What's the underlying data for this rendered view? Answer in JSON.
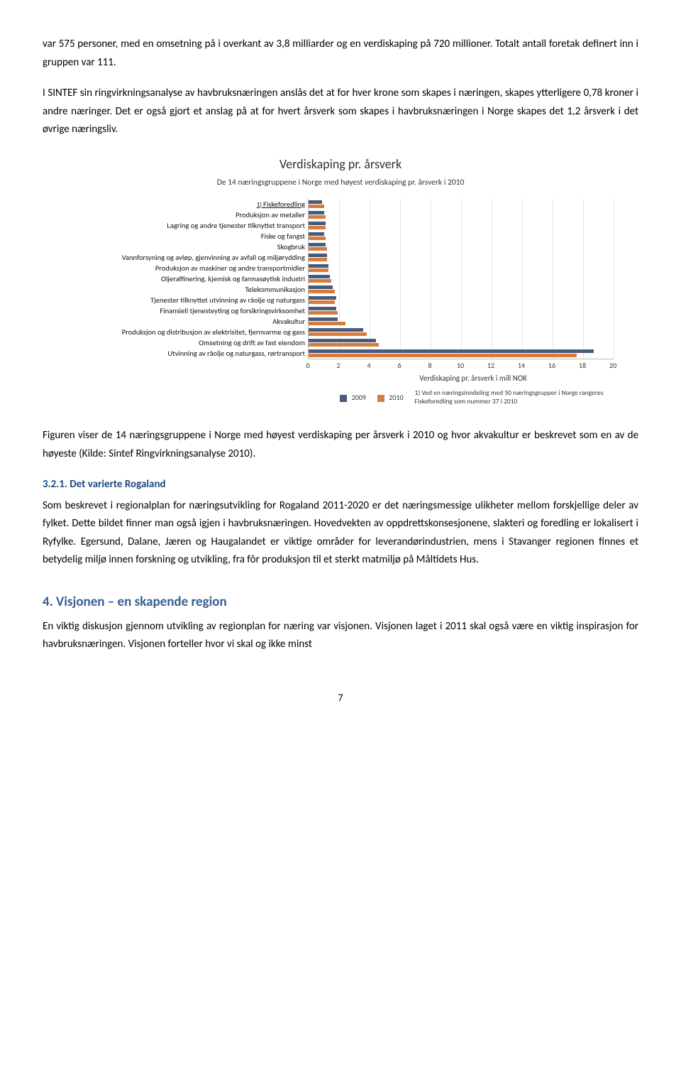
{
  "paragraphs": {
    "p1": "var 575 personer, med en omsetning på i overkant av 3,8 milliarder og en verdiskaping på 720 millioner. Totalt antall foretak definert inn i gruppen var 111.",
    "p2": "I SINTEF sin ringvirkningsanalyse av havbruksnæringen anslås det at for hver krone som skapes i næringen, skapes ytterligere 0,78 kroner i andre næringer. Det er også gjort et anslag på at for hvert årsverk som skapes i havbruksnæringen i Norge skapes det 1,2 årsverk i det øvrige næringsliv.",
    "p3": "Figuren viser de 14 næringsgruppene i Norge med høyest verdiskaping per årsverk i 2010 og hvor akvakultur er beskrevet som en av de høyeste (Kilde: Sintef Ringvirkningsanalyse 2010).",
    "p4": "Som beskrevet i regionalplan for næringsutvikling for Rogaland 2011-2020 er det næringsmessige ulikheter mellom forskjellige deler av fylket. Dette bildet finner man også igjen i havbruksnæringen. Hovedvekten av oppdrettskonsesjonene, slakteri og foredling er lokalisert i Ryfylke. Egersund, Dalane, Jæren og Haugalandet er viktige områder for leverandørindustrien, mens i Stavanger regionen finnes et betydelig miljø innen forskning og utvikling, fra fôr produksjon til et sterkt matmiljø på Måltidets Hus.",
    "p5": "En viktig diskusjon gjennom utvikling av regionplan for næring var visjonen. Visjonen laget i 2011 skal også være en viktig inspirasjon for havbruksnæringen. Visjonen forteller hvor vi skal og ikke minst"
  },
  "headings": {
    "h3_1": "3.2.1.  Det varierte Rogaland",
    "h2_1": "4. Visjonen – en skapende region"
  },
  "chart": {
    "title": "Verdiskaping pr. årsverk",
    "subtitle": "De 14 næringsgruppene i Norge med høyest verdiskaping pr. årsverk i 2010",
    "xlabel": "Verdiskaping pr. årsverk i mill NOK",
    "xmax": 20,
    "xticks": [
      0,
      2,
      4,
      6,
      8,
      10,
      12,
      14,
      16,
      18,
      20
    ],
    "footnote_marker": "1)",
    "underlined_row": 0,
    "categories": [
      "Fiskeforedling",
      "Produksjon av metaller",
      "Lagring og andre tjenester tilknyttet transport",
      "Fiske og fangst",
      "Skogbruk",
      "Vannforsyning og avløp, gjenvinning av avfall og miljørydding",
      "Produksjon av maskiner og andre transportmidler",
      "Oljeraffinering, kjemisk og farmasøytisk industri",
      "Telekommunikasjon",
      "Tjenester tilknyttet utvinning av råolje og naturgass",
      "Finansiell tjenesteyting og forsikringsvirksomhet",
      "Akvakultur",
      "Produksjon og distribusjon av elektrisitet, fjernvarme og gass",
      "Omsetning og drift av fast eiendom",
      "Utvinning av råolje og naturgass, rørtransport"
    ],
    "values_2009": [
      0.9,
      1.0,
      1.1,
      1.0,
      1.1,
      1.2,
      1.3,
      1.4,
      1.6,
      1.8,
      1.8,
      1.9,
      3.6,
      4.4,
      18.7
    ],
    "values_2010": [
      1.0,
      1.1,
      1.1,
      1.1,
      1.2,
      1.2,
      1.3,
      1.5,
      1.7,
      1.7,
      1.9,
      2.4,
      3.8,
      4.6,
      17.6
    ],
    "color_2009": "#4a5a7a",
    "color_2010": "#d97b3a",
    "legend_2009": "2009",
    "legend_2010": "2010",
    "legend_note": "1) Ved en næringsinndeling med 50 næringsgrupper i Norge rangeres Fiskeforedling som nummer 37 i 2010"
  },
  "page_number": "7"
}
